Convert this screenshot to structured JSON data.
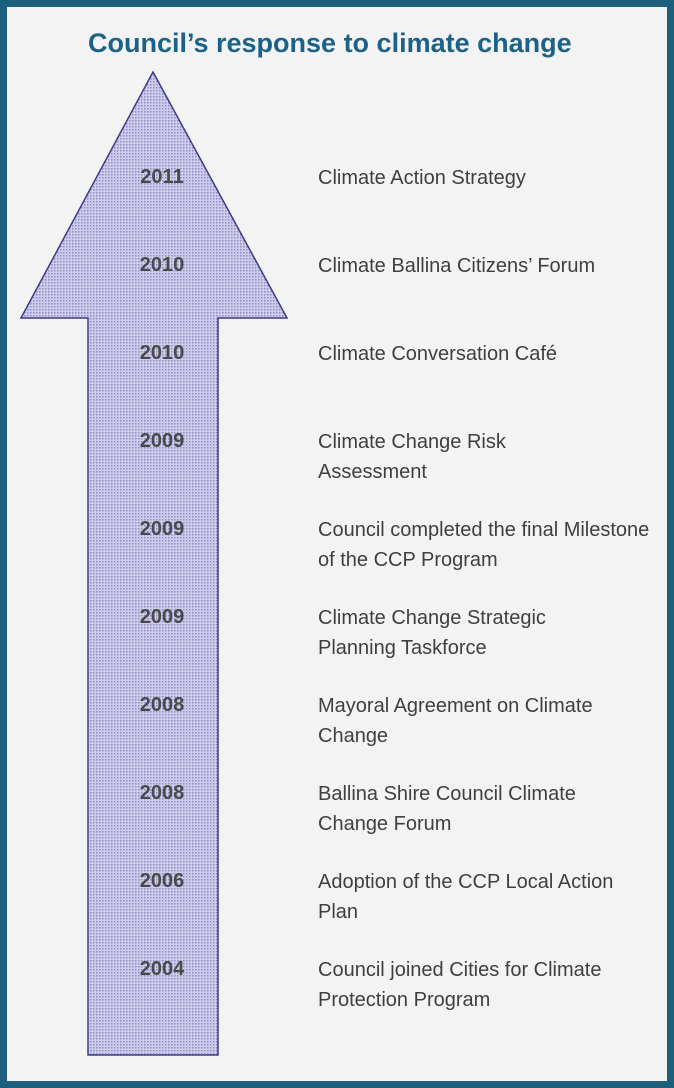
{
  "title": "Council’s response to climate change",
  "colors": {
    "frame": "#1e5f7c",
    "title": "#1c6188",
    "arrow_fill": "#b6b3de",
    "arrow_stroke": "#3d3b86"
  },
  "timeline": [
    {
      "year": "2011",
      "event": "Climate Action Strategy"
    },
    {
      "year": "2010",
      "event": "Climate Ballina Citizens’ Forum"
    },
    {
      "year": "2010",
      "event": "Climate Conversation Café"
    },
    {
      "year": "2009",
      "event": "Climate Change Risk Assessment"
    },
    {
      "year": "2009",
      "event": "Council completed the final Milestone of the CCP Program"
    },
    {
      "year": "2009",
      "event": "Climate Change Strategic Planning Taskforce"
    },
    {
      "year": "2008",
      "event": "Mayoral Agreement on Climate Change"
    },
    {
      "year": "2008",
      "event": "Ballina Shire Council Climate Change Forum"
    },
    {
      "year": "2006",
      "event": "Adoption of the CCP Local Action Plan"
    },
    {
      "year": "2004",
      "event": "Council joined Cities for Climate Protection Program"
    }
  ]
}
